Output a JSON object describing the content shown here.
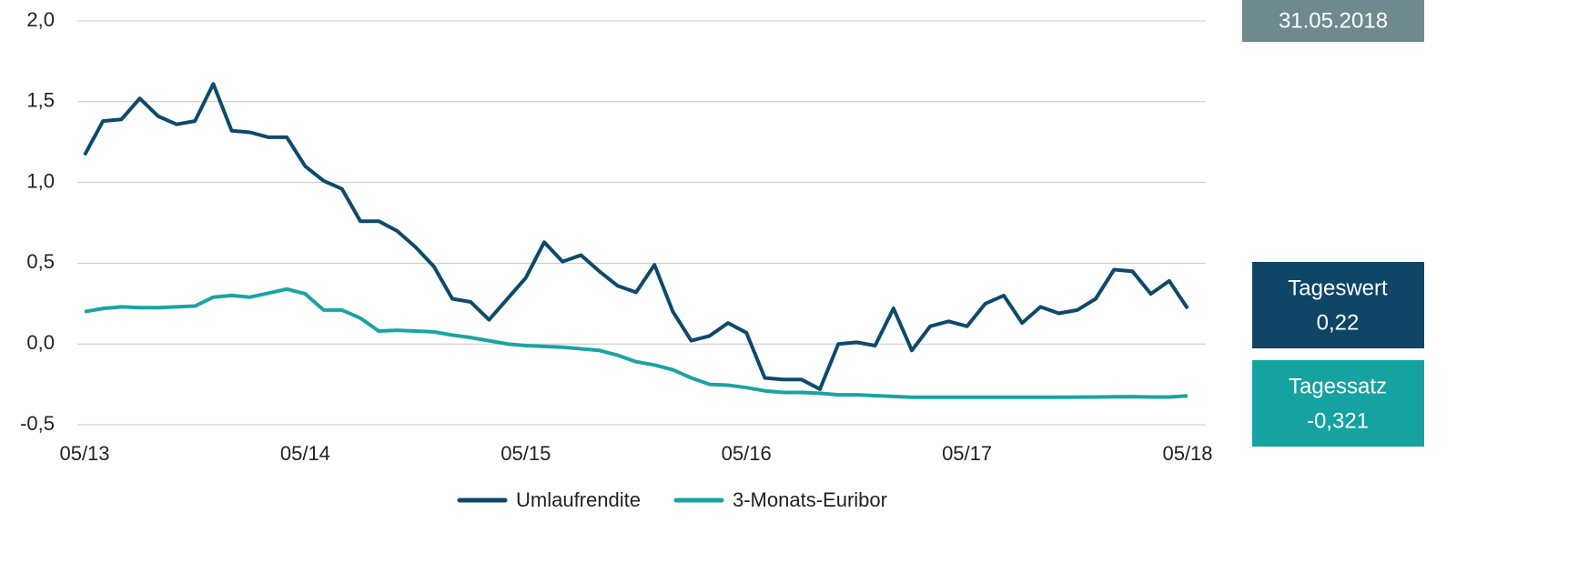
{
  "chart_data": {
    "type": "line",
    "date_label": "31.05.2018",
    "info_boxes": [
      {
        "title": "Tageswert",
        "value": "0,22",
        "color": "#0f4565"
      },
      {
        "title": "Tagessatz",
        "value": "-0,321",
        "color": "#14a3a0"
      }
    ],
    "categories": [
      "05/13",
      null,
      null,
      null,
      null,
      null,
      null,
      null,
      null,
      null,
      null,
      null,
      "05/14",
      null,
      null,
      null,
      null,
      null,
      null,
      null,
      null,
      null,
      null,
      null,
      "05/15",
      null,
      null,
      null,
      null,
      null,
      null,
      null,
      null,
      null,
      null,
      null,
      "05/16",
      null,
      null,
      null,
      null,
      null,
      null,
      null,
      null,
      null,
      null,
      null,
      "05/17",
      null,
      null,
      null,
      null,
      null,
      null,
      null,
      null,
      null,
      null,
      null,
      "05/18"
    ],
    "series": [
      {
        "name": "Umlaufrendite",
        "color": "#0d4a6b",
        "values": [
          1.17,
          1.38,
          1.39,
          1.52,
          1.41,
          1.36,
          1.38,
          1.61,
          1.32,
          1.31,
          1.28,
          1.28,
          1.1,
          1.01,
          0.96,
          0.76,
          0.76,
          0.7,
          0.6,
          0.48,
          0.28,
          0.26,
          0.15,
          0.28,
          0.41,
          0.63,
          0.51,
          0.55,
          0.45,
          0.36,
          0.32,
          0.49,
          0.2,
          0.02,
          0.05,
          0.13,
          0.07,
          -0.21,
          -0.22,
          -0.22,
          -0.28,
          0.0,
          0.01,
          -0.01,
          0.22,
          -0.04,
          0.11,
          0.14,
          0.11,
          0.25,
          0.3,
          0.13,
          0.23,
          0.19,
          0.21,
          0.28,
          0.46,
          0.45,
          0.31,
          0.39,
          0.22
        ]
      },
      {
        "name": "3-Monats-Euribor",
        "color": "#1aa3a3",
        "values": [
          0.2,
          0.22,
          0.23,
          0.225,
          0.225,
          0.23,
          0.235,
          0.29,
          0.3,
          0.29,
          0.315,
          0.34,
          0.31,
          0.21,
          0.21,
          0.16,
          0.08,
          0.085,
          0.08,
          0.075,
          0.055,
          0.04,
          0.02,
          0.0,
          -0.01,
          -0.015,
          -0.02,
          -0.03,
          -0.04,
          -0.07,
          -0.11,
          -0.13,
          -0.16,
          -0.21,
          -0.25,
          -0.255,
          -0.27,
          -0.29,
          -0.3,
          -0.3,
          -0.305,
          -0.315,
          -0.315,
          -0.32,
          -0.325,
          -0.33,
          -0.33,
          -0.33,
          -0.33,
          -0.33,
          -0.33,
          -0.33,
          -0.33,
          -0.33,
          -0.329,
          -0.328,
          -0.327,
          -0.326,
          -0.328,
          -0.328,
          -0.321
        ]
      }
    ],
    "ylim": [
      -0.5,
      2.0
    ],
    "yticks": [
      {
        "value": -0.5,
        "label": "-0,5"
      },
      {
        "value": 0,
        "label": "0,0"
      },
      {
        "value": 0.5,
        "label": "0,5"
      },
      {
        "value": 1.0,
        "label": "1,0"
      },
      {
        "value": 1.5,
        "label": "1,5"
      },
      {
        "value": 2.0,
        "label": "2,0"
      }
    ],
    "grid": true,
    "legend": "bottom",
    "date_color": "#6e8a8f"
  }
}
